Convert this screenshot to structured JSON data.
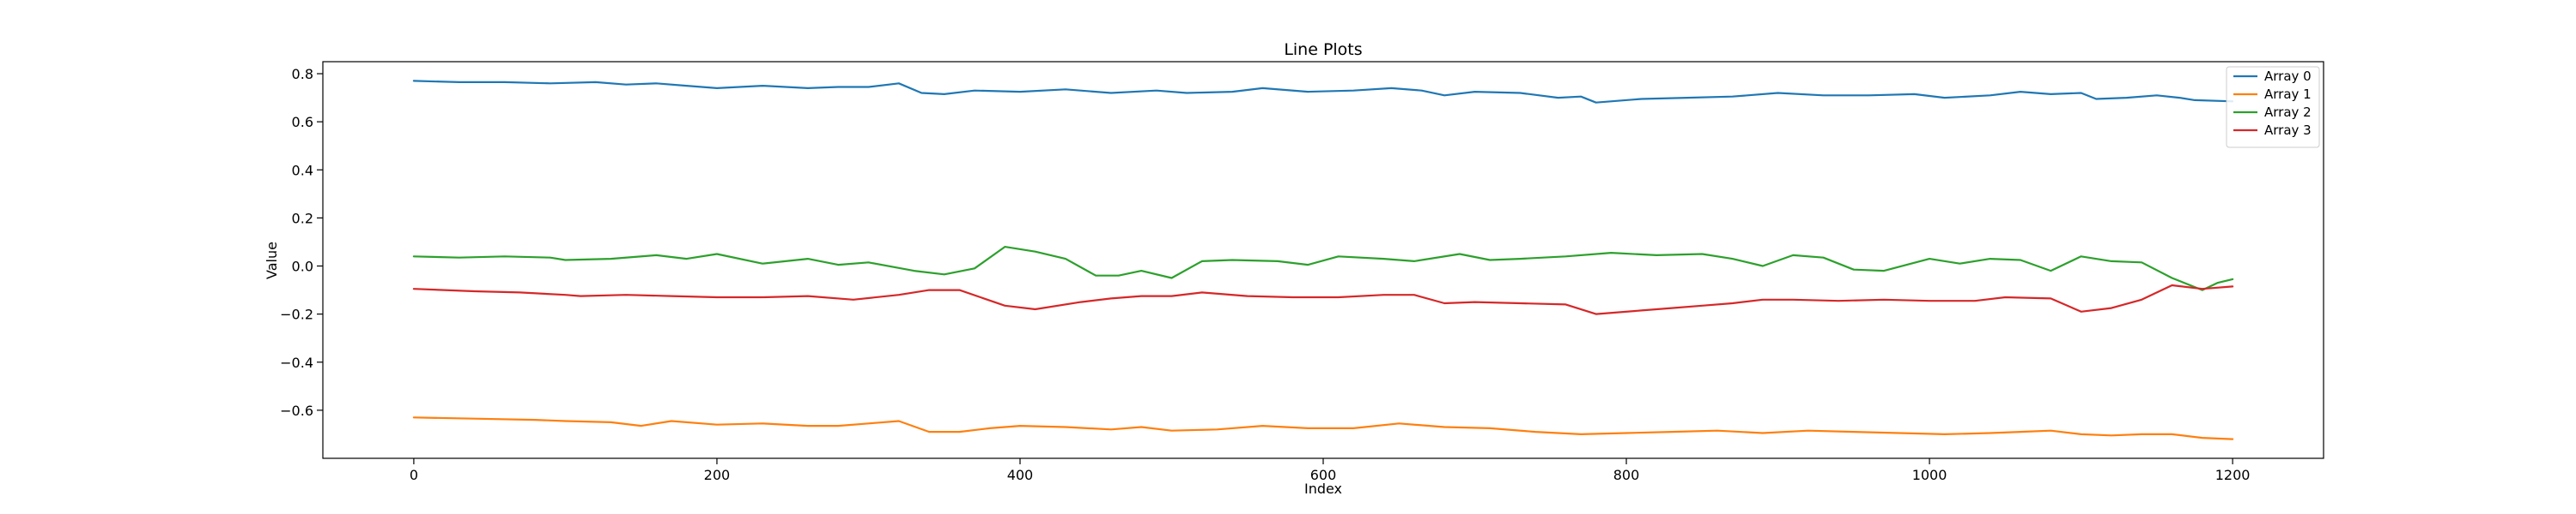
{
  "chart_data": {
    "type": "line",
    "title": "Line Plots",
    "xlabel": "Index",
    "ylabel": "Value",
    "xlim": [
      -60,
      1260
    ],
    "ylim": [
      -0.8,
      0.85
    ],
    "xticks": [
      0,
      200,
      400,
      600,
      800,
      1000,
      1200
    ],
    "xtick_labels": [
      "0",
      "200",
      "400",
      "600",
      "800",
      "1000",
      "1200"
    ],
    "yticks": [
      -0.6,
      -0.4,
      -0.2,
      0.0,
      0.2,
      0.4,
      0.6,
      0.8
    ],
    "ytick_labels": [
      "−0.6",
      "−0.4",
      "−0.2",
      "0.0",
      "0.2",
      "0.4",
      "0.6",
      "0.8"
    ],
    "grid": false,
    "legend_position": "top-right",
    "series": [
      {
        "name": "Array 0",
        "color": "#1f77b4",
        "points": [
          [
            0,
            0.77
          ],
          [
            30,
            0.765
          ],
          [
            60,
            0.765
          ],
          [
            90,
            0.76
          ],
          [
            120,
            0.765
          ],
          [
            140,
            0.755
          ],
          [
            160,
            0.76
          ],
          [
            180,
            0.75
          ],
          [
            200,
            0.74
          ],
          [
            230,
            0.75
          ],
          [
            260,
            0.74
          ],
          [
            280,
            0.745
          ],
          [
            300,
            0.745
          ],
          [
            320,
            0.76
          ],
          [
            335,
            0.72
          ],
          [
            350,
            0.715
          ],
          [
            370,
            0.73
          ],
          [
            400,
            0.725
          ],
          [
            430,
            0.735
          ],
          [
            460,
            0.72
          ],
          [
            490,
            0.73
          ],
          [
            510,
            0.72
          ],
          [
            540,
            0.725
          ],
          [
            560,
            0.74
          ],
          [
            590,
            0.725
          ],
          [
            620,
            0.73
          ],
          [
            645,
            0.74
          ],
          [
            665,
            0.73
          ],
          [
            680,
            0.71
          ],
          [
            700,
            0.725
          ],
          [
            730,
            0.72
          ],
          [
            755,
            0.7
          ],
          [
            770,
            0.705
          ],
          [
            780,
            0.68
          ],
          [
            810,
            0.695
          ],
          [
            840,
            0.7
          ],
          [
            870,
            0.705
          ],
          [
            900,
            0.72
          ],
          [
            930,
            0.71
          ],
          [
            960,
            0.71
          ],
          [
            990,
            0.715
          ],
          [
            1010,
            0.7
          ],
          [
            1040,
            0.71
          ],
          [
            1060,
            0.725
          ],
          [
            1080,
            0.715
          ],
          [
            1100,
            0.72
          ],
          [
            1110,
            0.695
          ],
          [
            1130,
            0.7
          ],
          [
            1150,
            0.71
          ],
          [
            1165,
            0.7
          ],
          [
            1175,
            0.69
          ],
          [
            1200,
            0.685
          ]
        ]
      },
      {
        "name": "Array 1",
        "color": "#ff7f0e",
        "points": [
          [
            0,
            -0.63
          ],
          [
            40,
            -0.635
          ],
          [
            80,
            -0.64
          ],
          [
            100,
            -0.645
          ],
          [
            130,
            -0.65
          ],
          [
            150,
            -0.665
          ],
          [
            170,
            -0.645
          ],
          [
            200,
            -0.66
          ],
          [
            230,
            -0.655
          ],
          [
            260,
            -0.665
          ],
          [
            280,
            -0.665
          ],
          [
            300,
            -0.655
          ],
          [
            320,
            -0.645
          ],
          [
            340,
            -0.69
          ],
          [
            360,
            -0.69
          ],
          [
            380,
            -0.675
          ],
          [
            400,
            -0.665
          ],
          [
            430,
            -0.67
          ],
          [
            460,
            -0.68
          ],
          [
            480,
            -0.67
          ],
          [
            500,
            -0.685
          ],
          [
            530,
            -0.68
          ],
          [
            560,
            -0.665
          ],
          [
            590,
            -0.675
          ],
          [
            620,
            -0.675
          ],
          [
            650,
            -0.655
          ],
          [
            680,
            -0.67
          ],
          [
            710,
            -0.675
          ],
          [
            740,
            -0.69
          ],
          [
            770,
            -0.7
          ],
          [
            800,
            -0.695
          ],
          [
            830,
            -0.69
          ],
          [
            860,
            -0.685
          ],
          [
            890,
            -0.695
          ],
          [
            920,
            -0.685
          ],
          [
            950,
            -0.69
          ],
          [
            980,
            -0.695
          ],
          [
            1010,
            -0.7
          ],
          [
            1040,
            -0.695
          ],
          [
            1060,
            -0.69
          ],
          [
            1080,
            -0.685
          ],
          [
            1100,
            -0.7
          ],
          [
            1120,
            -0.705
          ],
          [
            1140,
            -0.7
          ],
          [
            1160,
            -0.7
          ],
          [
            1180,
            -0.715
          ],
          [
            1200,
            -0.72
          ]
        ]
      },
      {
        "name": "Array 2",
        "color": "#2ca02c",
        "points": [
          [
            0,
            0.04
          ],
          [
            30,
            0.035
          ],
          [
            60,
            0.04
          ],
          [
            90,
            0.035
          ],
          [
            100,
            0.025
          ],
          [
            130,
            0.03
          ],
          [
            160,
            0.045
          ],
          [
            180,
            0.03
          ],
          [
            200,
            0.05
          ],
          [
            230,
            0.01
          ],
          [
            260,
            0.03
          ],
          [
            280,
            0.005
          ],
          [
            300,
            0.015
          ],
          [
            330,
            -0.02
          ],
          [
            350,
            -0.035
          ],
          [
            370,
            -0.01
          ],
          [
            390,
            0.08
          ],
          [
            410,
            0.06
          ],
          [
            430,
            0.03
          ],
          [
            450,
            -0.04
          ],
          [
            465,
            -0.04
          ],
          [
            480,
            -0.02
          ],
          [
            500,
            -0.05
          ],
          [
            520,
            0.02
          ],
          [
            540,
            0.025
          ],
          [
            570,
            0.02
          ],
          [
            590,
            0.005
          ],
          [
            610,
            0.04
          ],
          [
            640,
            0.03
          ],
          [
            660,
            0.02
          ],
          [
            690,
            0.05
          ],
          [
            710,
            0.025
          ],
          [
            730,
            0.03
          ],
          [
            760,
            0.04
          ],
          [
            790,
            0.055
          ],
          [
            820,
            0.045
          ],
          [
            850,
            0.05
          ],
          [
            870,
            0.03
          ],
          [
            890,
            0.0
          ],
          [
            910,
            0.045
          ],
          [
            930,
            0.035
          ],
          [
            950,
            -0.015
          ],
          [
            970,
            -0.02
          ],
          [
            1000,
            0.03
          ],
          [
            1020,
            0.01
          ],
          [
            1040,
            0.03
          ],
          [
            1060,
            0.025
          ],
          [
            1080,
            -0.02
          ],
          [
            1100,
            0.04
          ],
          [
            1120,
            0.02
          ],
          [
            1140,
            0.015
          ],
          [
            1160,
            -0.05
          ],
          [
            1180,
            -0.1
          ],
          [
            1190,
            -0.07
          ],
          [
            1200,
            -0.055
          ]
        ]
      },
      {
        "name": "Array 3",
        "color": "#d62728",
        "points": [
          [
            0,
            -0.095
          ],
          [
            40,
            -0.105
          ],
          [
            70,
            -0.11
          ],
          [
            100,
            -0.12
          ],
          [
            110,
            -0.125
          ],
          [
            140,
            -0.12
          ],
          [
            170,
            -0.125
          ],
          [
            200,
            -0.13
          ],
          [
            230,
            -0.13
          ],
          [
            260,
            -0.125
          ],
          [
            290,
            -0.14
          ],
          [
            320,
            -0.12
          ],
          [
            340,
            -0.1
          ],
          [
            360,
            -0.1
          ],
          [
            390,
            -0.165
          ],
          [
            410,
            -0.18
          ],
          [
            440,
            -0.15
          ],
          [
            460,
            -0.135
          ],
          [
            480,
            -0.125
          ],
          [
            500,
            -0.125
          ],
          [
            520,
            -0.11
          ],
          [
            550,
            -0.125
          ],
          [
            580,
            -0.13
          ],
          [
            610,
            -0.13
          ],
          [
            640,
            -0.12
          ],
          [
            660,
            -0.12
          ],
          [
            680,
            -0.155
          ],
          [
            700,
            -0.15
          ],
          [
            730,
            -0.155
          ],
          [
            760,
            -0.16
          ],
          [
            780,
            -0.2
          ],
          [
            810,
            -0.185
          ],
          [
            830,
            -0.175
          ],
          [
            850,
            -0.165
          ],
          [
            870,
            -0.155
          ],
          [
            890,
            -0.14
          ],
          [
            910,
            -0.14
          ],
          [
            940,
            -0.145
          ],
          [
            970,
            -0.14
          ],
          [
            1000,
            -0.145
          ],
          [
            1030,
            -0.145
          ],
          [
            1050,
            -0.13
          ],
          [
            1080,
            -0.135
          ],
          [
            1100,
            -0.19
          ],
          [
            1120,
            -0.175
          ],
          [
            1140,
            -0.14
          ],
          [
            1160,
            -0.08
          ],
          [
            1180,
            -0.095
          ],
          [
            1200,
            -0.085
          ]
        ]
      }
    ]
  }
}
